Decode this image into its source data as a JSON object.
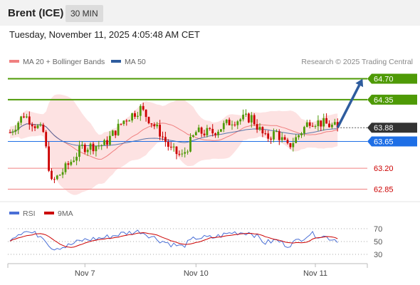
{
  "header": {
    "title": "Brent (ICE)",
    "timeframe": "30 MIN"
  },
  "timestamp": "Tuesday, November 11, 2025 4:05:48 AM CET",
  "legend": [
    {
      "label": "MA 20 + Bollinger Bands",
      "color": "#f08080"
    },
    {
      "label": "MA 50",
      "color": "#2e5c9e"
    }
  ],
  "source": "Research © 2025 Trading Central",
  "colors": {
    "up": "#4e9a06",
    "down": "#cc0000",
    "band": "#fde2e2",
    "ma20": "#f08080",
    "ma50": "#2e5c9e",
    "resistance": "#4e9a06",
    "pivot": "#1e6fe6",
    "support": "#f08080",
    "current": "#333333",
    "arrow": "#2e5c9e",
    "rsi": "#4a6fd6",
    "rsi_ma": "#cc0000"
  },
  "chart_data": [
    {
      "type": "candlestick",
      "ylim": [
        62.7,
        64.85
      ],
      "x_ticks": [
        {
          "label": "Nov 7",
          "index": 27
        },
        {
          "label": "Nov 10",
          "index": 67
        },
        {
          "label": "Nov 11",
          "index": 110
        }
      ],
      "levels": [
        {
          "value": 64.7,
          "label": "64.70",
          "kind": "resistance"
        },
        {
          "value": 64.35,
          "label": "64.35",
          "kind": "resistance"
        },
        {
          "value": 63.88,
          "label": "63.88",
          "kind": "current"
        },
        {
          "value": 63.65,
          "label": "63.65",
          "kind": "pivot"
        },
        {
          "value": 63.2,
          "label": "63.20",
          "kind": "support"
        },
        {
          "value": 62.85,
          "label": "62.85",
          "kind": "support"
        }
      ],
      "forecast_arrow": {
        "from_index": 118,
        "from_value": 63.88,
        "to_index": 127,
        "to_value": 64.7
      },
      "keypoints": [
        {
          "i": 0,
          "v": 63.8
        },
        {
          "i": 5,
          "v": 64.1
        },
        {
          "i": 12,
          "v": 63.8
        },
        {
          "i": 15,
          "v": 62.95
        },
        {
          "i": 20,
          "v": 63.2
        },
        {
          "i": 26,
          "v": 63.55
        },
        {
          "i": 34,
          "v": 63.6
        },
        {
          "i": 41,
          "v": 64.0
        },
        {
          "i": 47,
          "v": 64.2
        },
        {
          "i": 54,
          "v": 63.8
        },
        {
          "i": 58,
          "v": 63.5
        },
        {
          "i": 62,
          "v": 63.4
        },
        {
          "i": 67,
          "v": 63.8
        },
        {
          "i": 73,
          "v": 63.8
        },
        {
          "i": 80,
          "v": 64.0
        },
        {
          "i": 87,
          "v": 64.05
        },
        {
          "i": 92,
          "v": 63.7
        },
        {
          "i": 96,
          "v": 63.8
        },
        {
          "i": 100,
          "v": 63.55
        },
        {
          "i": 103,
          "v": 63.7
        },
        {
          "i": 108,
          "v": 64.0
        },
        {
          "i": 113,
          "v": 63.95
        },
        {
          "i": 118,
          "v": 63.88
        }
      ],
      "n": 119
    },
    {
      "type": "line",
      "ylim": [
        20,
        80
      ],
      "y_ticks": [
        70,
        50,
        30
      ],
      "series": [
        {
          "name": "RSI",
          "color": "#4a6fd6"
        },
        {
          "name": "9MA",
          "color": "#cc0000"
        }
      ],
      "rsi_keypoints": [
        {
          "i": 0,
          "v": 55
        },
        {
          "i": 5,
          "v": 67
        },
        {
          "i": 12,
          "v": 58
        },
        {
          "i": 15,
          "v": 40
        },
        {
          "i": 20,
          "v": 42
        },
        {
          "i": 26,
          "v": 52
        },
        {
          "i": 34,
          "v": 56
        },
        {
          "i": 41,
          "v": 63
        },
        {
          "i": 47,
          "v": 66
        },
        {
          "i": 54,
          "v": 52
        },
        {
          "i": 58,
          "v": 46
        },
        {
          "i": 62,
          "v": 42
        },
        {
          "i": 67,
          "v": 56
        },
        {
          "i": 73,
          "v": 56
        },
        {
          "i": 80,
          "v": 64
        },
        {
          "i": 87,
          "v": 64
        },
        {
          "i": 92,
          "v": 48
        },
        {
          "i": 96,
          "v": 52
        },
        {
          "i": 100,
          "v": 44
        },
        {
          "i": 103,
          "v": 50
        },
        {
          "i": 108,
          "v": 62
        },
        {
          "i": 113,
          "v": 58
        },
        {
          "i": 118,
          "v": 52
        }
      ]
    }
  ]
}
